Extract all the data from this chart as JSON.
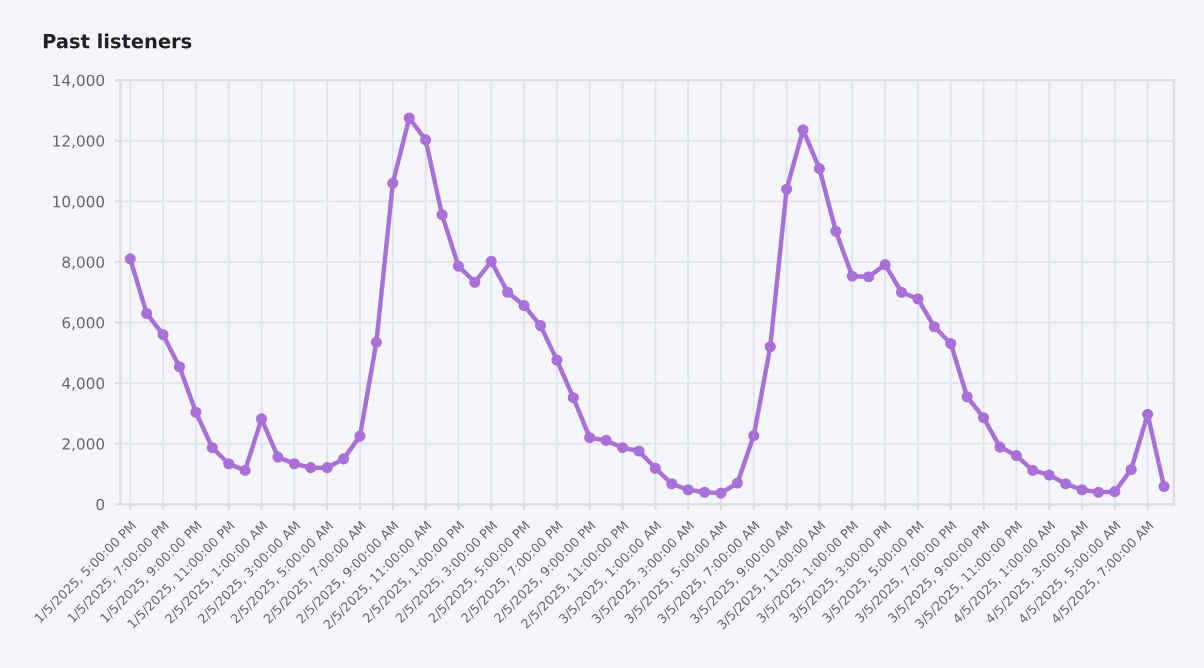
{
  "chart_data": {
    "type": "line",
    "title": "Past listeners",
    "categories": [
      "1/5/2025, 5:00:00 PM",
      null,
      "1/5/2025, 7:00:00 PM",
      null,
      "1/5/2025, 9:00:00 PM",
      null,
      "1/5/2025, 11:00:00 PM",
      null,
      "2/5/2025, 1:00:00 AM",
      null,
      "2/5/2025, 3:00:00 AM",
      null,
      "2/5/2025, 5:00:00 AM",
      null,
      "2/5/2025, 7:00:00 AM",
      null,
      "2/5/2025, 9:00:00 AM",
      null,
      "2/5/2025, 11:00:00 AM",
      null,
      "2/5/2025, 1:00:00 PM",
      null,
      "2/5/2025, 3:00:00 PM",
      null,
      "2/5/2025, 5:00:00 PM",
      null,
      "2/5/2025, 7:00:00 PM",
      null,
      "2/5/2025, 9:00:00 PM",
      null,
      "2/5/2025, 11:00:00 PM",
      null,
      "3/5/2025, 1:00:00 AM",
      null,
      "3/5/2025, 3:00:00 AM",
      null,
      "3/5/2025, 5:00:00 AM",
      null,
      "3/5/2025, 7:00:00 AM",
      null,
      "3/5/2025, 9:00:00 AM",
      null,
      "3/5/2025, 11:00:00 AM",
      null,
      "3/5/2025, 1:00:00 PM",
      null,
      "3/5/2025, 3:00:00 PM",
      null,
      "3/5/2025, 5:00:00 PM",
      null,
      "3/5/2025, 7:00:00 PM",
      null,
      "3/5/2025, 9:00:00 PM",
      null,
      "3/5/2025, 11:00:00 PM",
      null,
      "4/5/2025, 1:00:00 AM",
      null,
      "4/5/2025, 3:00:00 AM",
      null,
      "4/5/2025, 5:00:00 AM",
      null,
      "4/5/2025, 7:00:00 AM",
      null
    ],
    "series": [
      {
        "color": "#a970d8",
        "values": [
          8100,
          6300,
          5600,
          4540,
          3040,
          1870,
          1340,
          1120,
          2820,
          1560,
          1340,
          1210,
          1210,
          1500,
          2250,
          5350,
          10600,
          12750,
          12030,
          9560,
          7860,
          7330,
          8020,
          7000,
          6560,
          5900,
          4760,
          3520,
          2200,
          2110,
          1870,
          1760,
          1190,
          680,
          480,
          400,
          370,
          700,
          2270,
          5200,
          10400,
          12360,
          11080,
          9010,
          7530,
          7510,
          7910,
          7000,
          6780,
          5860,
          5310,
          3550,
          2860,
          1890,
          1610,
          1120,
          970,
          680,
          480,
          400,
          420,
          1150,
          2970,
          590
        ]
      }
    ],
    "ylim": [
      0,
      14000
    ],
    "yticks": [
      {
        "value": 0,
        "label": "0"
      },
      {
        "value": 2000,
        "label": "2,000"
      },
      {
        "value": 4000,
        "label": "4,000"
      },
      {
        "value": 6000,
        "label": "6,000"
      },
      {
        "value": 8000,
        "label": "8,000"
      },
      {
        "value": 10000,
        "label": "10,000"
      },
      {
        "value": 12000,
        "label": "12,000"
      },
      {
        "value": 14000,
        "label": "14,000"
      }
    ],
    "grid": true,
    "marker": "circle",
    "line_style": "solid",
    "legend": false
  }
}
